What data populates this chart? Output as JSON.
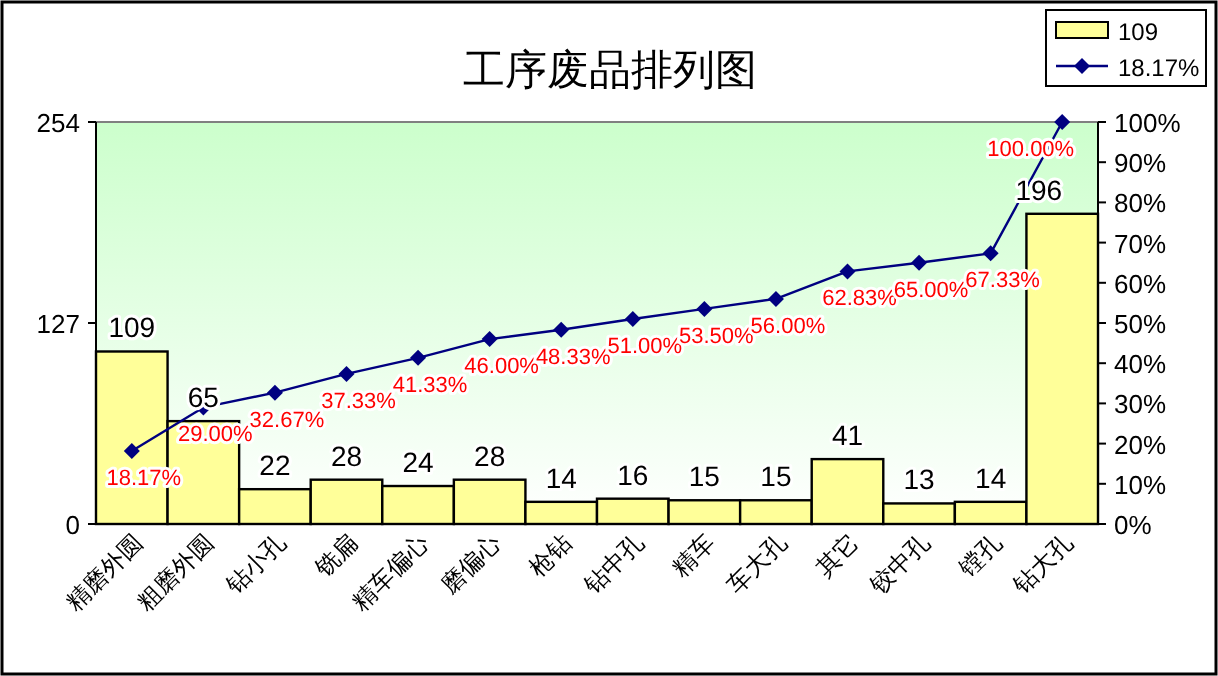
{
  "chart_data": {
    "type": "bar",
    "title": "工序废品排列图",
    "categories": [
      "精磨外圆",
      "粗磨外圆",
      "钻小孔",
      "铣扁",
      "精车偏心",
      "磨偏心",
      "枪钻",
      "钻中孔",
      "精车",
      "车大孔",
      "其它",
      "铰中孔",
      "镗孔",
      "钻大孔"
    ],
    "series": [
      {
        "name": "109",
        "type": "bar",
        "color": "#ffff99",
        "values": [
          109,
          65,
          22,
          28,
          24,
          28,
          14,
          16,
          15,
          15,
          41,
          13,
          14,
          196
        ],
        "value_labels": [
          "109",
          "65",
          "22",
          "28",
          "24",
          "28",
          "14",
          "16",
          "15",
          "15",
          "41",
          "13",
          "14",
          "196"
        ]
      },
      {
        "name": "18.17%",
        "type": "line",
        "axis": "y2",
        "color": "#000080",
        "marker": "diamond",
        "values": [
          18.17,
          29.0,
          32.67,
          37.33,
          41.33,
          46.0,
          48.33,
          51.0,
          53.5,
          56.0,
          62.83,
          65.0,
          67.33,
          100.0
        ],
        "value_labels": [
          "18.17%",
          "29.00%",
          "32.67%",
          "37.33%",
          "41.33%",
          "46.00%",
          "48.33%",
          "51.00%",
          "53.50%",
          "56.00%",
          "62.83%",
          "65.00%",
          "67.33%",
          "100.00%"
        ]
      }
    ],
    "ylim": [
      0,
      254
    ],
    "yticks": [
      0,
      127,
      254
    ],
    "y2lim": [
      0,
      100
    ],
    "y2ticks": [
      {
        "value": 0,
        "label": "0%"
      },
      {
        "value": 10,
        "label": "10%"
      },
      {
        "value": 20,
        "label": "20%"
      },
      {
        "value": 30,
        "label": "30%"
      },
      {
        "value": 40,
        "label": "40%"
      },
      {
        "value": 50,
        "label": "50%"
      },
      {
        "value": 60,
        "label": "60%"
      },
      {
        "value": 70,
        "label": "70%"
      },
      {
        "value": 80,
        "label": "80%"
      },
      {
        "value": 90,
        "label": "90%"
      },
      {
        "value": 100,
        "label": "100%"
      }
    ],
    "legend": "top right"
  }
}
